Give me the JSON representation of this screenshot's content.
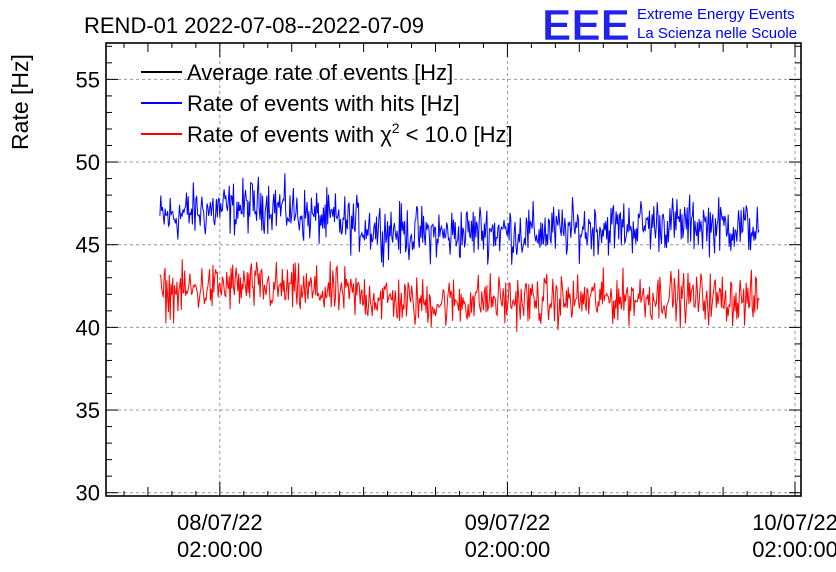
{
  "chart_data": {
    "type": "line",
    "title": "REND-01 2022-07-08--2022-07-09",
    "ylabel": "Rate [Hz]",
    "xlabel": "",
    "ylim": [
      29.8,
      57.2
    ],
    "xlim": [
      "2022-07-07 16:30:00",
      "2022-07-10 02:30:00"
    ],
    "y_ticks": [
      {
        "value": 30,
        "label": "30"
      },
      {
        "value": 35,
        "label": "35"
      },
      {
        "value": 40,
        "label": "40"
      },
      {
        "value": 45,
        "label": "45"
      },
      {
        "value": 50,
        "label": "50"
      },
      {
        "value": 55,
        "label": "55"
      }
    ],
    "x_ticks": [
      {
        "time": "2022-07-08 02:00:00",
        "date": "08/07/22",
        "clock": "02:00:00"
      },
      {
        "time": "2022-07-09 02:00:00",
        "date": "09/07/22",
        "clock": "02:00:00"
      },
      {
        "time": "2022-07-10 02:00:00",
        "date": "10/07/22",
        "clock": "02:00:00"
      }
    ],
    "grid": true,
    "legend_position": "top-left",
    "series": [
      {
        "name": "Average rate of events [Hz]",
        "color": "#000000",
        "x": [],
        "values": []
      },
      {
        "name": "Rate of events with hits [Hz]",
        "color": "#0000ff",
        "x": [
          "2022-07-07 21:00",
          "2022-07-08 00:00",
          "2022-07-08 03:00",
          "2022-07-08 06:00",
          "2022-07-08 09:00",
          "2022-07-08 12:00",
          "2022-07-08 15:00",
          "2022-07-08 18:00",
          "2022-07-08 21:00",
          "2022-07-09 00:00",
          "2022-07-09 03:00",
          "2022-07-09 06:00",
          "2022-07-09 09:00",
          "2022-07-09 12:00",
          "2022-07-09 15:00",
          "2022-07-09 18:00",
          "2022-07-09 21:00",
          "2022-07-09 23:00"
        ],
        "values": [
          46.6,
          47.0,
          47.2,
          47.5,
          46.8,
          46.4,
          46.0,
          45.7,
          45.6,
          45.9,
          45.7,
          45.8,
          46.0,
          46.1,
          46.3,
          46.2,
          46.1,
          46.0
        ],
        "spread": 1.4
      },
      {
        "name": "Rate of events with χ² < 10.0 [Hz]",
        "legend_main": "Rate of events with χ",
        "legend_sup": "2",
        "legend_tail": "< 10.0 [Hz]",
        "color": "#ff0000",
        "x": [
          "2022-07-07 21:00",
          "2022-07-08 00:00",
          "2022-07-08 03:00",
          "2022-07-08 06:00",
          "2022-07-08 09:00",
          "2022-07-08 12:00",
          "2022-07-08 15:00",
          "2022-07-08 18:00",
          "2022-07-08 21:00",
          "2022-07-09 00:00",
          "2022-07-09 03:00",
          "2022-07-09 06:00",
          "2022-07-09 09:00",
          "2022-07-09 12:00",
          "2022-07-09 15:00",
          "2022-07-09 18:00",
          "2022-07-09 21:00",
          "2022-07-09 23:00"
        ],
        "values": [
          42.0,
          42.3,
          42.5,
          42.4,
          42.2,
          42.1,
          41.8,
          41.5,
          41.5,
          41.7,
          41.6,
          41.6,
          41.7,
          41.8,
          41.9,
          41.8,
          41.7,
          41.6
        ],
        "spread": 1.3
      }
    ]
  },
  "logo": {
    "letters": "EEE",
    "line1": "Extreme Energy Events",
    "line2": "La Scienza nelle Scuole",
    "color": "#0000ff"
  }
}
